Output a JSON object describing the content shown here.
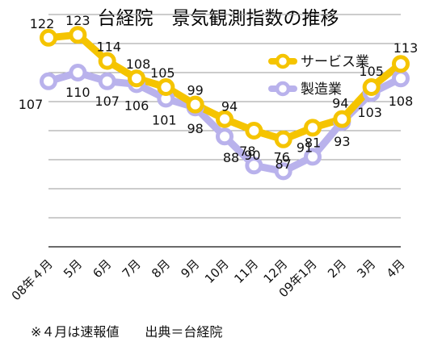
{
  "chart_data": {
    "type": "line",
    "title": "台経院　景気観測指数の推移",
    "categories": [
      "08年４月",
      "5月",
      "6月",
      "7月",
      "8月",
      "9月",
      "10月",
      "11月",
      "12月",
      "09年1月",
      "2月",
      "3月",
      "4月"
    ],
    "series": [
      {
        "name": "サービス業",
        "color": "#f5c400",
        "values": [
          122,
          123,
          114,
          108,
          105,
          99,
          94,
          90,
          87,
          91,
          94,
          105,
          113
        ]
      },
      {
        "name": "製造業",
        "color": "#b9b2ec",
        "values": [
          107,
          110,
          107,
          106,
          101,
          98,
          88,
          78,
          76,
          81,
          93,
          103,
          108
        ]
      }
    ],
    "ylim": [
      50,
      140
    ],
    "grid": true,
    "legend": "top-right",
    "xlabel": "",
    "ylabel": ""
  },
  "footer": {
    "note": "※４月は速報値　　出典＝台経院"
  }
}
